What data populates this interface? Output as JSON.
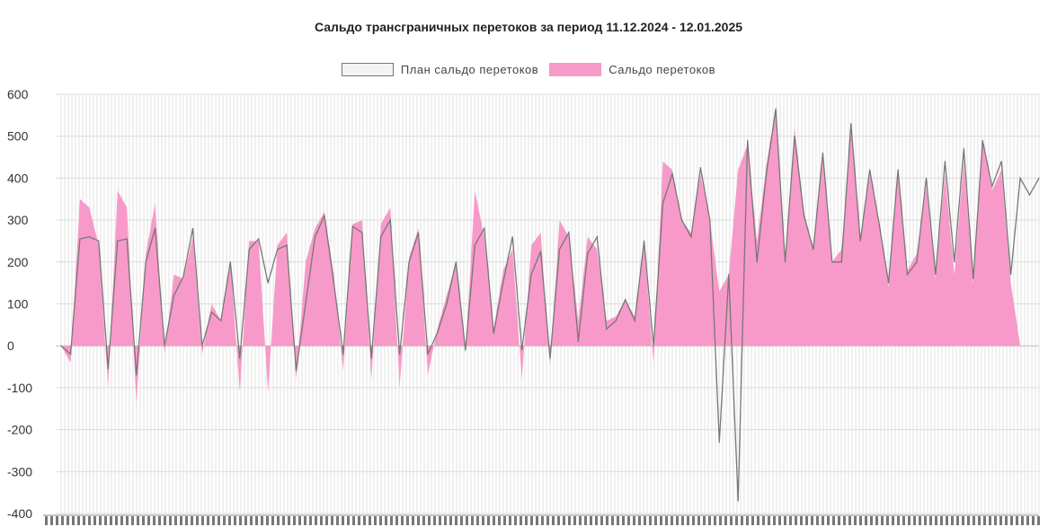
{
  "chart_data": {
    "type": "area",
    "title": "Сальдо трансграничных перетоков за период 11.12.2024 - 12.01.2025",
    "legend_position": "top",
    "grid": true,
    "ylim": [
      -400,
      600
    ],
    "yticks": [
      600,
      500,
      400,
      300,
      200,
      100,
      0,
      -100,
      -200,
      -300,
      -400
    ],
    "colors": {
      "plan_line": "#777777",
      "plan_fill": "#f1f1f1",
      "actual_fill": "#f79ac9"
    },
    "series": [
      {
        "name": "План сальдо перетоков",
        "kind": "line",
        "values": [
          0,
          -20,
          255,
          260,
          250,
          -55,
          250,
          255,
          -70,
          200,
          280,
          0,
          120,
          165,
          280,
          0,
          80,
          60,
          200,
          -30,
          230,
          255,
          150,
          230,
          240,
          -60,
          100,
          260,
          310,
          150,
          -20,
          285,
          270,
          -30,
          260,
          300,
          -20,
          200,
          270,
          -20,
          30,
          100,
          200,
          -10,
          240,
          280,
          30,
          150,
          260,
          -10,
          170,
          225,
          -30,
          230,
          270,
          10,
          220,
          260,
          40,
          60,
          110,
          60,
          250,
          0,
          340,
          410,
          300,
          260,
          425,
          300,
          -230,
          170,
          -370,
          490,
          200,
          410,
          565,
          200,
          500,
          310,
          230,
          460,
          200,
          200,
          530,
          250,
          420,
          290,
          150,
          420,
          170,
          200,
          400,
          170,
          440,
          200,
          470,
          160,
          490,
          380,
          440,
          170,
          400,
          360,
          400
        ],
        "description_note": ""
      },
      {
        "name": "Сальдо перетоков",
        "kind": "area",
        "values": [
          0,
          -40,
          350,
          330,
          240,
          -100,
          370,
          330,
          -140,
          220,
          340,
          -20,
          170,
          160,
          260,
          -20,
          100,
          60,
          200,
          -110,
          250,
          250,
          -110,
          240,
          270,
          -80,
          200,
          280,
          320,
          170,
          -60,
          290,
          300,
          -80,
          290,
          330,
          -100,
          210,
          280,
          -70,
          40,
          120,
          200,
          -20,
          370,
          260,
          40,
          180,
          230,
          -80,
          240,
          270,
          -50,
          300,
          260,
          60,
          260,
          230,
          60,
          70,
          110,
          70,
          240,
          -40,
          440,
          420,
          300,
          270,
          410,
          300,
          130,
          170,
          420,
          480,
          250,
          430,
          570,
          200,
          520,
          320,
          230,
          460,
          200,
          230,
          520,
          250,
          410,
          300,
          140,
          410,
          180,
          220,
          380,
          160,
          410,
          170,
          440,
          150,
          490,
          370,
          420,
          150,
          0,
          0,
          0
        ]
      }
    ]
  }
}
